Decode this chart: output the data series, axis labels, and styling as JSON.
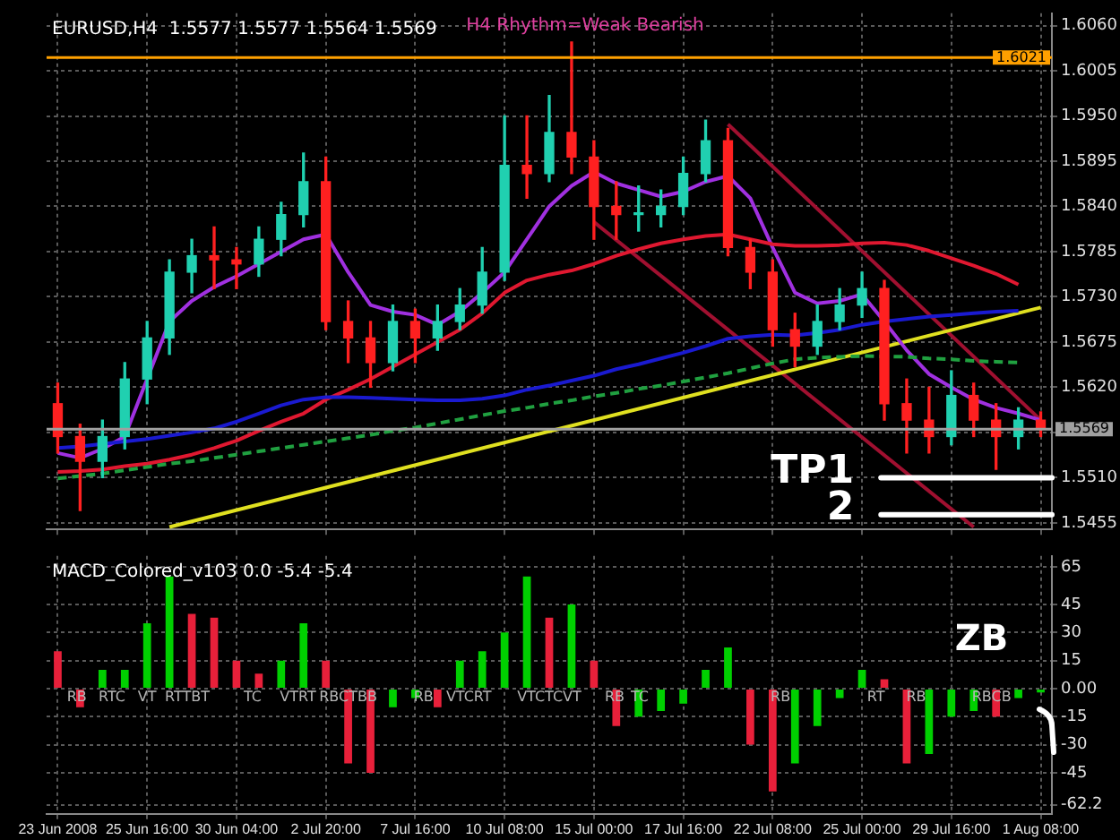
{
  "chart_data": [
    {
      "type": "candlestick",
      "title": "EURUSD,H4  1.5577 1.5577 1.5564 1.5569",
      "subtitle": "H4 Rhythm=Weak Bearish",
      "ohlc": [
        [
          1.56,
          1.5625,
          1.554,
          1.556
        ],
        [
          1.556,
          1.5575,
          1.547,
          1.553
        ],
        [
          1.553,
          1.558,
          1.551,
          1.556
        ],
        [
          1.556,
          1.565,
          1.5545,
          1.563
        ],
        [
          1.563,
          1.57,
          1.56,
          1.568
        ],
        [
          1.568,
          1.5775,
          1.566,
          1.576
        ],
        [
          1.576,
          1.58,
          1.5735,
          1.578
        ],
        [
          1.578,
          1.5815,
          1.574,
          1.5775
        ],
        [
          1.5775,
          1.579,
          1.574,
          1.577
        ],
        [
          1.577,
          1.5815,
          1.5755,
          1.58
        ],
        [
          1.58,
          1.5845,
          1.578,
          1.583
        ],
        [
          1.583,
          1.5905,
          1.5815,
          1.587
        ],
        [
          1.587,
          1.59,
          1.569,
          1.57
        ],
        [
          1.57,
          1.5725,
          1.565,
          1.568
        ],
        [
          1.568,
          1.57,
          1.562,
          1.565
        ],
        [
          1.565,
          1.572,
          1.564,
          1.57
        ],
        [
          1.57,
          1.5715,
          1.565,
          1.568
        ],
        [
          1.568,
          1.572,
          1.5665,
          1.57
        ],
        [
          1.57,
          1.574,
          1.569,
          1.572
        ],
        [
          1.572,
          1.579,
          1.571,
          1.576
        ],
        [
          1.576,
          1.595,
          1.575,
          1.589
        ],
        [
          1.589,
          1.595,
          1.585,
          1.588
        ],
        [
          1.588,
          1.5975,
          1.587,
          1.593
        ],
        [
          1.593,
          1.604,
          1.588,
          1.59
        ],
        [
          1.59,
          1.592,
          1.58,
          1.584
        ],
        [
          1.584,
          1.587,
          1.58,
          1.583
        ],
        [
          1.583,
          1.5865,
          1.581,
          1.583
        ],
        [
          1.583,
          1.586,
          1.5815,
          1.584
        ],
        [
          1.584,
          1.59,
          1.583,
          1.588
        ],
        [
          1.588,
          1.5945,
          1.587,
          1.592
        ],
        [
          1.592,
          1.5935,
          1.578,
          1.579
        ],
        [
          1.579,
          1.58,
          1.574,
          1.576
        ],
        [
          1.576,
          1.5775,
          1.567,
          1.569
        ],
        [
          1.569,
          1.571,
          1.5645,
          1.567
        ],
        [
          1.567,
          1.572,
          1.566,
          1.57
        ],
        [
          1.57,
          1.574,
          1.569,
          1.572
        ],
        [
          1.572,
          1.576,
          1.5705,
          1.574
        ],
        [
          1.574,
          1.575,
          1.558,
          1.56
        ],
        [
          1.56,
          1.563,
          1.554,
          1.558
        ],
        [
          1.558,
          1.562,
          1.554,
          1.556
        ],
        [
          1.556,
          1.564,
          1.555,
          1.561
        ],
        [
          1.561,
          1.5625,
          1.556,
          1.558
        ],
        [
          1.558,
          1.56,
          1.552,
          1.556
        ],
        [
          1.556,
          1.5595,
          1.5545,
          1.558
        ],
        [
          1.558,
          1.559,
          1.556,
          1.5569
        ]
      ],
      "colors": [
        "#ff2020",
        "#ff2020",
        "#20d0b0",
        "#20d0b0",
        "#20d0b0",
        "#20d0b0",
        "#20d0b0",
        "#ff2020",
        "#ff2020",
        "#20d0b0",
        "#20d0b0",
        "#20d0b0",
        "#ff2020",
        "#ff2020",
        "#ff2020",
        "#20d0b0",
        "#ff2020",
        "#20d0b0",
        "#20d0b0",
        "#20d0b0",
        "#20d0b0",
        "#ff2020",
        "#20d0b0",
        "#ff2020",
        "#ff2020",
        "#ff2020",
        "#20d0b0",
        "#20d0b0",
        "#20d0b0",
        "#20d0b0",
        "#ff2020",
        "#ff2020",
        "#ff2020",
        "#ff2020",
        "#20d0b0",
        "#20d0b0",
        "#20d0b0",
        "#ff2020",
        "#ff2020",
        "#ff2020",
        "#20d0b0",
        "#ff2020",
        "#ff2020",
        "#20d0b0",
        "#ff2020"
      ],
      "series": [
        {
          "type": "line",
          "color": "#1a1ad0",
          "values": [
            1.5546,
            1.5548,
            1.5551,
            1.5554,
            1.5557,
            1.5561,
            1.5565,
            1.557,
            1.5578,
            1.5588,
            1.5598,
            1.5605,
            1.5608,
            1.5608,
            1.5607,
            1.5606,
            1.5605,
            1.5604,
            1.5604,
            1.5606,
            1.561,
            1.5617,
            1.5622,
            1.5628,
            1.5634,
            1.5642,
            1.5648,
            1.5655,
            1.5662,
            1.567,
            1.5679,
            1.5682,
            1.5684,
            1.5683,
            1.5686,
            1.569,
            1.5696,
            1.57,
            1.5703,
            1.5706,
            1.5708,
            1.571,
            1.5712,
            1.5713,
            null
          ]
        },
        {
          "type": "line",
          "color": "#20a040",
          "line_style": "dashed",
          "values": [
            1.5509,
            1.5512,
            1.5515,
            1.5519,
            1.5523,
            1.5527,
            1.553,
            1.5534,
            1.5538,
            1.5542,
            1.5546,
            1.555,
            1.5554,
            1.5558,
            1.5562,
            1.5567,
            1.5571,
            1.5576,
            1.5581,
            1.5586,
            1.5591,
            1.5595,
            1.56,
            1.5604,
            1.5609,
            1.5613,
            1.5618,
            1.5622,
            1.5627,
            1.5632,
            1.5637,
            1.5643,
            1.5649,
            1.5654,
            1.5656,
            1.5657,
            1.5658,
            null,
            1.5657,
            1.5655,
            1.5654,
            1.5652,
            1.5651,
            1.565,
            null
          ]
        },
        {
          "type": "line",
          "color": "#e01830",
          "values": [
            1.5517,
            1.5518,
            1.552,
            1.5524,
            1.5527,
            1.5532,
            1.5538,
            1.5546,
            1.5555,
            1.5567,
            1.5578,
            1.5588,
            1.5605,
            1.5617,
            1.563,
            1.5645,
            1.566,
            1.5675,
            1.569,
            1.571,
            1.5735,
            1.575,
            1.5757,
            1.5762,
            1.577,
            1.578,
            1.5788,
            1.5795,
            1.58,
            1.5804,
            1.5806,
            1.58,
            1.5794,
            1.5792,
            1.5792,
            1.5793,
            1.5795,
            1.5796,
            1.5793,
            1.5786,
            1.5777,
            1.5768,
            1.5758,
            1.5745,
            null
          ]
        },
        {
          "type": "line",
          "color": "#a030e0",
          "values": [
            1.554,
            1.5534,
            1.5545,
            1.556,
            null,
            1.57,
            1.5725,
            1.5742,
            1.5755,
            1.577,
            1.5785,
            1.58,
            1.5806,
            1.576,
            1.572,
            1.5712,
            1.5708,
            1.5696,
            1.5712,
            1.5735,
            1.576,
            1.58,
            1.584,
            1.5865,
            1.5882,
            1.5868,
            1.586,
            1.5852,
            1.5858,
            1.587,
            1.5877,
            1.585,
            1.579,
            1.5735,
            1.5722,
            1.5725,
            1.5733,
            1.57,
            1.5665,
            1.5636,
            1.562,
            1.5605,
            1.5595,
            1.5588,
            1.558
          ]
        },
        {
          "type": "line",
          "color": "#e0e020",
          "values": [
            null,
            null,
            null,
            null,
            null,
            1.545,
            null,
            null,
            null,
            null,
            null,
            null,
            null,
            null,
            null,
            null,
            null,
            null,
            null,
            null,
            null,
            null,
            null,
            null,
            null,
            null,
            null,
            null,
            null,
            null,
            null,
            null,
            null,
            null,
            null,
            null,
            null,
            null,
            null,
            null,
            null,
            null,
            null,
            null,
            1.5717
          ]
        },
        {
          "type": "line",
          "color": "#a01030",
          "values": [
            null,
            null,
            null,
            null,
            null,
            null,
            null,
            null,
            null,
            null,
            null,
            null,
            null,
            null,
            null,
            null,
            null,
            null,
            null,
            null,
            null,
            null,
            null,
            null,
            null,
            null,
            null,
            null,
            null,
            null,
            1.594,
            null,
            null,
            null,
            null,
            null,
            null,
            null,
            null,
            null,
            null,
            null,
            null,
            null,
            1.558
          ]
        },
        {
          "type": "line",
          "color": "#a01030",
          "values": [
            null,
            null,
            null,
            null,
            null,
            null,
            null,
            null,
            null,
            null,
            null,
            null,
            null,
            null,
            null,
            null,
            null,
            null,
            null,
            null,
            null,
            null,
            null,
            null,
            1.5821,
            null,
            null,
            null,
            null,
            null,
            null,
            null,
            null,
            null,
            null,
            null,
            null,
            null,
            null,
            null,
            null,
            1.545,
            null,
            null,
            null
          ]
        }
      ],
      "ylim": [
        1.5447,
        1.6075
      ],
      "yticks": [
        {
          "value": 1.606,
          "label": "1.6060"
        },
        1.6005,
        {
          "value": 1.595,
          "label": "1.5950"
        },
        1.5895,
        {
          "value": 1.584,
          "label": "1.5840"
        },
        1.5785,
        {
          "value": 1.573,
          "label": "1.5730"
        },
        1.5675,
        {
          "value": 1.562,
          "label": "1.5620"
        },
        {
          "value": 1.5565,
          "label": null
        },
        {
          "value": 1.551,
          "label": "1.5510"
        },
        1.5455
      ],
      "ref_lines": [
        {
          "axis": "y",
          "value": 1.6021,
          "label": "1.6021",
          "color": "#ffa000"
        },
        {
          "axis": "y",
          "value": 1.5569,
          "label": "1.5569",
          "color": "#a0a0a0"
        },
        {
          "axis": "y",
          "value": 1.551,
          "label": "TP1",
          "color": "#ffffff"
        },
        {
          "axis": "y",
          "value": 1.5465,
          "label": "2",
          "color": "#ffffff"
        }
      ],
      "tick_labels": "y",
      "grid": true,
      "legend": false,
      "marker": "none"
    },
    {
      "type": "bar",
      "title": "MACD_Colored_v103 0.0 -5.4 -5.4",
      "categories": [
        "23 Jun 2008",
        null,
        null,
        null,
        "25 Jun 16:00",
        null,
        null,
        null,
        "30 Jun 04:00",
        null,
        null,
        null,
        "2 Jul 20:00",
        null,
        null,
        null,
        "7 Jul 16:00",
        null,
        null,
        null,
        "10 Jul 08:00",
        null,
        null,
        null,
        "15 Jul 00:00",
        null,
        null,
        null,
        "17 Jul 16:00",
        null,
        null,
        null,
        "22 Jul 08:00",
        null,
        null,
        null,
        "25 Jul 00:00",
        null,
        null,
        null,
        "29 Jul 16:00",
        null,
        null,
        null,
        "1 Aug 08:00"
      ],
      "values": [
        20,
        -10,
        10,
        10,
        35,
        60,
        40,
        38,
        15,
        8,
        15,
        35,
        15,
        -40,
        -45,
        -10,
        -5,
        -10,
        15,
        20,
        30,
        60,
        38,
        45,
        15,
        -20,
        -15,
        -12,
        -8,
        10,
        22,
        -30,
        -55,
        -40,
        -20,
        -5,
        10,
        5,
        -40,
        -35,
        -15,
        -12,
        -15,
        -5,
        -2
      ],
      "colors": [
        "#e8203a",
        "#e8203a",
        "#00d000",
        "#00d000",
        "#00d000",
        "#00d000",
        "#e8203a",
        "#e8203a",
        "#e8203a",
        "#e8203a",
        "#00d000",
        "#00d000",
        "#e8203a",
        "#e8203a",
        "#e8203a",
        "#00d000",
        "#00d000",
        "#e8203a",
        "#00d000",
        "#00d000",
        "#00d000",
        "#00d000",
        "#e8203a",
        "#00d000",
        "#e8203a",
        "#e8203a",
        "#00d000",
        "#00d000",
        "#00d000",
        "#00d000",
        "#00d000",
        "#e8203a",
        "#e8203a",
        "#00d000",
        "#00d000",
        "#00d000",
        "#00d000",
        "#e8203a",
        "#e8203a",
        "#00d000",
        "#00d000",
        "#00d000",
        "#e8203a",
        "#00d000",
        "#00d000"
      ],
      "ylim": [
        -67,
        71
      ],
      "yticks": [
        65,
        45,
        30,
        15,
        {
          "value": 0,
          "label": "0.00"
        },
        -15,
        -30,
        -45,
        -62.2
      ],
      "annotations": [
        "RB",
        "RTC",
        "VT",
        "RTTBT",
        "TC",
        "VTRT",
        "RBCTBB",
        "RB",
        "VTCRT",
        "VTCTCVT",
        "RB",
        "TC",
        "RB",
        "RT",
        "RB",
        "RBCB",
        "ZB"
      ],
      "grid": true,
      "legend": false
    }
  ]
}
